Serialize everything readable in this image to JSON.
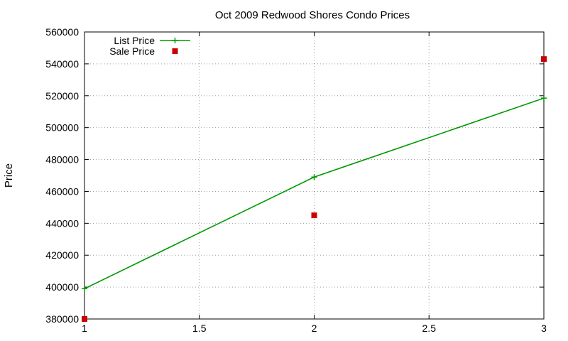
{
  "chart_data": {
    "type": "line",
    "title": "Oct 2009 Redwood Shores Condo Prices",
    "xlabel": "",
    "ylabel": "Price",
    "xlim": [
      1,
      3
    ],
    "ylim": [
      380000,
      560000
    ],
    "xticks": [
      1,
      1.5,
      2,
      2.5,
      3
    ],
    "xtick_labels": [
      "1",
      "1.5",
      "2",
      "2.5",
      "3"
    ],
    "yticks": [
      380000,
      400000,
      420000,
      440000,
      460000,
      480000,
      500000,
      520000,
      540000,
      560000
    ],
    "ytick_labels": [
      "380000",
      "400000",
      "420000",
      "440000",
      "460000",
      "480000",
      "500000",
      "520000",
      "540000",
      "560000"
    ],
    "grid": true,
    "legend_position": "top-left",
    "series": [
      {
        "name": "List Price",
        "kind": "line",
        "marker": "plus",
        "color": "#009900",
        "x": [
          1,
          2,
          3
        ],
        "y": [
          399000,
          469000,
          518500
        ]
      },
      {
        "name": "Sale Price",
        "kind": "scatter",
        "marker": "square",
        "color": "#cc0000",
        "x": [
          1,
          2,
          3
        ],
        "y": [
          380000,
          445000,
          543000
        ]
      }
    ]
  }
}
